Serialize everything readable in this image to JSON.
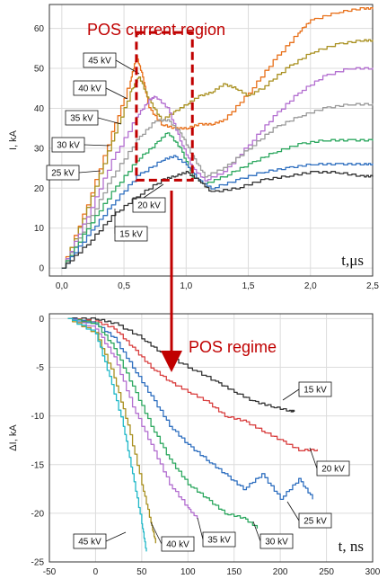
{
  "chart_data": [
    {
      "type": "line",
      "ylabel": "I, kA",
      "xlabel": "",
      "unit_label": "t,μs",
      "xlim": [
        -0.1,
        2.5
      ],
      "ylim": [
        -2,
        66
      ],
      "xticks": [
        "0,0",
        "0,5",
        "1,0",
        "1,5",
        "2,0",
        "2,5"
      ],
      "yticks": [
        "0",
        "10",
        "20",
        "30",
        "40",
        "50",
        "60"
      ],
      "grid": true,
      "annotation": "POS current region",
      "region": {
        "x": [
          0.6,
          1.05
        ],
        "y": [
          22,
          59
        ]
      },
      "series": [
        {
          "name": "45 kV",
          "color": "#e8701a",
          "x": [
            0,
            0.2,
            0.4,
            0.55,
            0.6,
            0.65,
            0.7,
            0.8,
            0.9,
            1.0,
            1.1,
            1.2,
            1.3,
            1.5,
            1.7,
            1.9,
            2.0,
            2.2,
            2.4,
            2.5
          ],
          "y": [
            0,
            16,
            34,
            47,
            53,
            48,
            40,
            36,
            35,
            35,
            36,
            36,
            37,
            44,
            52,
            59,
            62,
            64,
            65,
            65
          ]
        },
        {
          "name": "40 kV",
          "color": "#a99020",
          "x": [
            0,
            0.2,
            0.4,
            0.55,
            0.62,
            0.7,
            0.8,
            0.9,
            1.0,
            1.1,
            1.2,
            1.3,
            1.4,
            1.5,
            1.6,
            1.8,
            2.0,
            2.2,
            2.4,
            2.5
          ],
          "y": [
            0,
            15,
            32,
            44,
            48,
            42,
            37,
            39,
            41,
            43,
            44,
            46,
            45,
            43,
            45,
            50,
            54,
            56,
            57,
            57
          ]
        },
        {
          "name": "35 kV",
          "color": "#b36fd0",
          "x": [
            0,
            0.2,
            0.4,
            0.6,
            0.7,
            0.75,
            0.85,
            0.95,
            1.05,
            1.15,
            1.3,
            1.5,
            1.7,
            1.9,
            2.1,
            2.3,
            2.5
          ],
          "y": [
            0,
            13,
            27,
            38,
            42,
            43,
            40,
            32,
            25,
            22,
            24,
            31,
            38,
            44,
            48,
            50,
            50
          ]
        },
        {
          "name": "30 kV",
          "color": "#9a9a9a",
          "x": [
            0,
            0.2,
            0.4,
            0.6,
            0.75,
            0.85,
            0.95,
            1.05,
            1.15,
            1.3,
            1.5,
            1.7,
            1.9,
            2.1,
            2.3,
            2.5
          ],
          "y": [
            0,
            11,
            23,
            32,
            37,
            37,
            34,
            28,
            23,
            25,
            30,
            35,
            38,
            40,
            41,
            41
          ]
        },
        {
          "name": "25 kV",
          "color": "#2ea860",
          "x": [
            0,
            0.2,
            0.4,
            0.6,
            0.75,
            0.85,
            0.95,
            1.05,
            1.15,
            1.3,
            1.5,
            1.7,
            1.9,
            2.1,
            2.3,
            2.5
          ],
          "y": [
            0,
            10,
            19,
            27,
            31,
            34,
            30,
            23,
            21,
            23,
            26,
            29,
            31,
            32,
            32,
            32
          ]
        },
        {
          "name": "20 kV",
          "color": "#3070c0",
          "x": [
            0,
            0.2,
            0.4,
            0.6,
            0.8,
            0.9,
            1.0,
            1.1,
            1.2,
            1.4,
            1.6,
            1.8,
            2.0,
            2.2,
            2.4,
            2.5
          ],
          "y": [
            0,
            8,
            16,
            23,
            27,
            28,
            26,
            22,
            20,
            22,
            24,
            25,
            26,
            26,
            26,
            26
          ]
        },
        {
          "name": "15 kV",
          "color": "#333333",
          "x": [
            0,
            0.2,
            0.4,
            0.6,
            0.8,
            0.9,
            1.0,
            1.1,
            1.2,
            1.4,
            1.6,
            1.8,
            2.0,
            2.2,
            2.4,
            2.5
          ],
          "y": [
            0,
            6,
            13,
            18,
            22,
            23,
            24,
            22,
            19,
            20,
            22,
            23,
            24,
            24,
            23,
            23
          ]
        }
      ]
    },
    {
      "type": "line",
      "ylabel": "ΔI, kA",
      "xlabel": "",
      "unit_label": "t, ns",
      "xlim": [
        -50,
        300
      ],
      "ylim": [
        -25,
        0.5
      ],
      "xticks": [
        "-50",
        "0",
        "50",
        "100",
        "150",
        "200",
        "250",
        "300"
      ],
      "yticks": [
        "0",
        "-5",
        "-10",
        "-15",
        "-20",
        "-25"
      ],
      "grid": true,
      "annotation": "POS regime",
      "series": [
        {
          "name": "15 kV",
          "color": "#333333",
          "x": [
            -30,
            0,
            20,
            50,
            70,
            100,
            130,
            150,
            170,
            190,
            210,
            215
          ],
          "y": [
            0,
            0,
            -0.5,
            -2,
            -3.5,
            -5,
            -6.5,
            -7.5,
            -8.5,
            -9,
            -9.5,
            -9.5
          ]
        },
        {
          "name": "20 kV",
          "color": "#d94040",
          "x": [
            -30,
            0,
            20,
            40,
            60,
            80,
            100,
            120,
            140,
            160,
            180,
            200,
            220,
            240
          ],
          "y": [
            0,
            -0.3,
            -1,
            -3,
            -5,
            -6.5,
            -7.5,
            -8.5,
            -10,
            -10.5,
            -11.5,
            -12.5,
            -13.5,
            -13.5
          ]
        },
        {
          "name": "25 kV",
          "color": "#3070c0",
          "x": [
            -30,
            0,
            20,
            40,
            60,
            80,
            100,
            120,
            140,
            160,
            180,
            200,
            220,
            235
          ],
          "y": [
            0,
            -0.5,
            -2,
            -5,
            -8,
            -11,
            -13,
            -14.5,
            -16,
            -17.5,
            -16,
            -18.5,
            -16.5,
            -18.5
          ]
        },
        {
          "name": "30 kV",
          "color": "#2ea860",
          "x": [
            -30,
            0,
            20,
            40,
            60,
            80,
            100,
            120,
            140,
            160,
            175
          ],
          "y": [
            0,
            -0.5,
            -3,
            -7,
            -11,
            -14.5,
            -17,
            -18.5,
            -20,
            -20.5,
            -21.5
          ]
        },
        {
          "name": "35 kV",
          "color": "#b36fd0",
          "x": [
            -30,
            0,
            20,
            40,
            60,
            80,
            100,
            110
          ],
          "y": [
            0,
            -1,
            -4,
            -9,
            -13,
            -17,
            -19.5,
            -20.5
          ]
        },
        {
          "name": "40 kV",
          "color": "#a99020",
          "x": [
            -30,
            0,
            20,
            35,
            50,
            60,
            65
          ],
          "y": [
            0,
            -1.5,
            -6,
            -11,
            -17,
            -21,
            -23
          ]
        },
        {
          "name": "45 kV",
          "color": "#20b8c8",
          "x": [
            -30,
            0,
            15,
            30,
            40,
            50,
            55
          ],
          "y": [
            0,
            -1.5,
            -6,
            -11,
            -16,
            -21,
            -24
          ]
        }
      ]
    }
  ]
}
